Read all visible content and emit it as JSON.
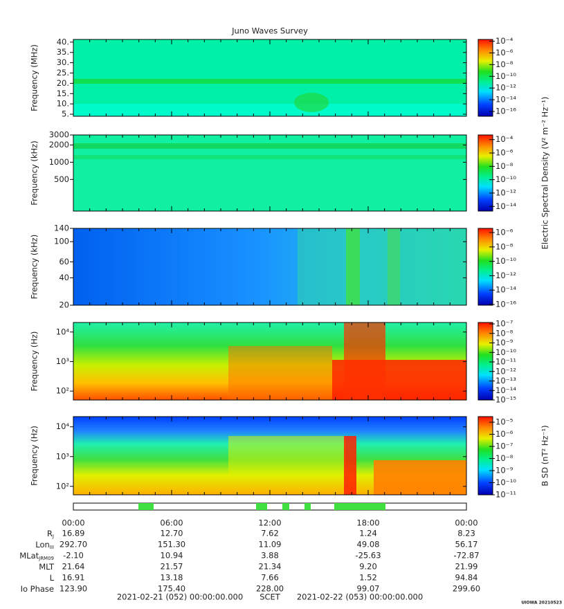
{
  "title": "Juno Waves Survey",
  "chart_data": [
    {
      "type": "spectrogram",
      "ylabel": "Frequency (MHz)",
      "yscale": "linear",
      "ylim": [
        4,
        41.3
      ],
      "yticks": [
        {
          "value": 5,
          "label": "5."
        },
        {
          "value": 10,
          "label": "10."
        },
        {
          "value": 15,
          "label": "15."
        },
        {
          "value": 20,
          "label": "20."
        },
        {
          "value": 25,
          "label": "25."
        },
        {
          "value": 30,
          "label": "30."
        },
        {
          "value": 35,
          "label": "35."
        },
        {
          "value": 40,
          "label": "40."
        }
      ],
      "colorbar": {
        "scale": "log",
        "lim": [
          1.5e-17,
          0.0002
        ],
        "ticks": [
          {
            "value": 1e-16,
            "label": "10⁻¹⁶"
          },
          {
            "value": 1e-14,
            "label": "10⁻¹⁴"
          },
          {
            "value": 1e-12,
            "label": "10⁻¹²"
          },
          {
            "value": 1e-10,
            "label": "10⁻¹⁰"
          },
          {
            "value": 1e-08,
            "label": "10⁻⁸"
          },
          {
            "value": 1e-06,
            "label": "10⁻⁶"
          },
          {
            "value": 0.0001,
            "label": "10⁻⁴"
          }
        ]
      }
    },
    {
      "type": "spectrogram",
      "ylabel": "Frequency (kHz)",
      "yscale": "log",
      "ylim": [
        140,
        3000
      ],
      "yticks": [
        500,
        1000,
        2000,
        3000
      ],
      "colorbar": {
        "scale": "log",
        "lim": [
          2e-15,
          0.0005
        ],
        "label": "Electric Spectral Density (V² m⁻² Hz⁻¹)",
        "ticks": [
          {
            "value": 1e-14,
            "label": "10⁻¹⁴"
          },
          {
            "value": 1e-12,
            "label": "10⁻¹²"
          },
          {
            "value": 1e-10,
            "label": "10⁻¹⁰"
          },
          {
            "value": 1e-08,
            "label": "10⁻⁸"
          },
          {
            "value": 1e-06,
            "label": "10⁻⁶"
          },
          {
            "value": 0.0001,
            "label": "10⁻⁴"
          }
        ]
      }
    },
    {
      "type": "spectrogram",
      "ylabel": "Frequency (kHz)",
      "yscale": "log",
      "ylim": [
        20,
        140
      ],
      "yticks": [
        20,
        40,
        60,
        100,
        140
      ],
      "colorbar": {
        "scale": "log",
        "lim": [
          8e-17,
          3.8e-06
        ],
        "ticks": [
          {
            "value": 1e-16,
            "label": "10⁻¹⁶"
          },
          {
            "value": 1e-14,
            "label": "10⁻¹⁴"
          },
          {
            "value": 1e-12,
            "label": "10⁻¹²"
          },
          {
            "value": 1e-10,
            "label": "10⁻¹⁰"
          },
          {
            "value": 1e-08,
            "label": "10⁻⁸"
          },
          {
            "value": 1e-06,
            "label": "10⁻⁶"
          }
        ]
      }
    },
    {
      "type": "spectrogram",
      "ylabel": "Frequency (Hz)",
      "yscale": "log",
      "ylim": [
        50,
        21000
      ],
      "yticks": [
        {
          "value": 100,
          "label": "10²"
        },
        {
          "value": 1000,
          "label": "10³"
        },
        {
          "value": 10000,
          "label": "10⁴"
        }
      ],
      "colorbar": {
        "scale": "log",
        "lim": [
          1e-15,
          1.4e-07
        ],
        "ticks": [
          {
            "value": 1e-15,
            "label": "10⁻¹⁵"
          },
          {
            "value": 1e-14,
            "label": "10⁻¹⁴"
          },
          {
            "value": 1e-13,
            "label": "10⁻¹³"
          },
          {
            "value": 1e-12,
            "label": "10⁻¹²"
          },
          {
            "value": 1e-11,
            "label": "10⁻¹¹"
          },
          {
            "value": 1e-10,
            "label": "10⁻¹⁰"
          },
          {
            "value": 1e-09,
            "label": "10⁻⁹"
          },
          {
            "value": 1e-08,
            "label": "10⁻⁸"
          },
          {
            "value": 1e-07,
            "label": "10⁻⁷"
          }
        ]
      }
    },
    {
      "type": "spectrogram",
      "ylabel": "Frequency (Hz)",
      "yscale": "log",
      "ylim": [
        52,
        22000
      ],
      "yticks": [
        {
          "value": 100,
          "label": "10²"
        },
        {
          "value": 1000,
          "label": "10³"
        },
        {
          "value": 10000,
          "label": "10⁴"
        }
      ],
      "colorbar": {
        "scale": "log",
        "lim": [
          1e-11,
          2.9e-05
        ],
        "label": "B SD (nT² Hz⁻¹)",
        "ticks": [
          {
            "value": 1e-11,
            "label": "10⁻¹¹"
          },
          {
            "value": 1e-10,
            "label": "10⁻¹⁰"
          },
          {
            "value": 1e-09,
            "label": "10⁻⁹"
          },
          {
            "value": 1e-08,
            "label": "10⁻⁸"
          },
          {
            "value": 1e-07,
            "label": "10⁻⁷"
          },
          {
            "value": 1e-06,
            "label": "10⁻⁶"
          },
          {
            "value": 1e-05,
            "label": "10⁻⁵"
          }
        ]
      }
    }
  ],
  "time_axis": {
    "ticks": [
      "00:00",
      "06:00",
      "12:00",
      "18:00",
      "00:00"
    ]
  },
  "ephemeris": [
    {
      "label": "R",
      "sub": "J",
      "values": [
        "16.89",
        "12.70",
        "7.62",
        "1.24",
        "8.23"
      ]
    },
    {
      "label": "Lon",
      "sub": "III",
      "values": [
        "292.70",
        "151.30",
        "11.09",
        "49.08",
        "56.17"
      ]
    },
    {
      "label": "MLat",
      "sub": "JRM09",
      "values": [
        "-2.10",
        "10.94",
        "3.88",
        "-25.63",
        "-72.87"
      ]
    },
    {
      "label": "MLT",
      "values": [
        "21.64",
        "21.57",
        "21.34",
        "9.20",
        "21.99"
      ]
    },
    {
      "label": "L",
      "values": [
        "16.91",
        "13.18",
        "7.66",
        "1.52",
        "94.84"
      ]
    },
    {
      "label": "Io Phase",
      "values": [
        "123.90",
        "175.40",
        "228.00",
        "99.07",
        "299.60"
      ]
    }
  ],
  "footer": {
    "start": "2021-02-21 (052) 00:00:00.000",
    "middle": "SCET",
    "end": "2021-02-22 (053) 00:00:00.000"
  },
  "credit": "UIOWA 20210523"
}
